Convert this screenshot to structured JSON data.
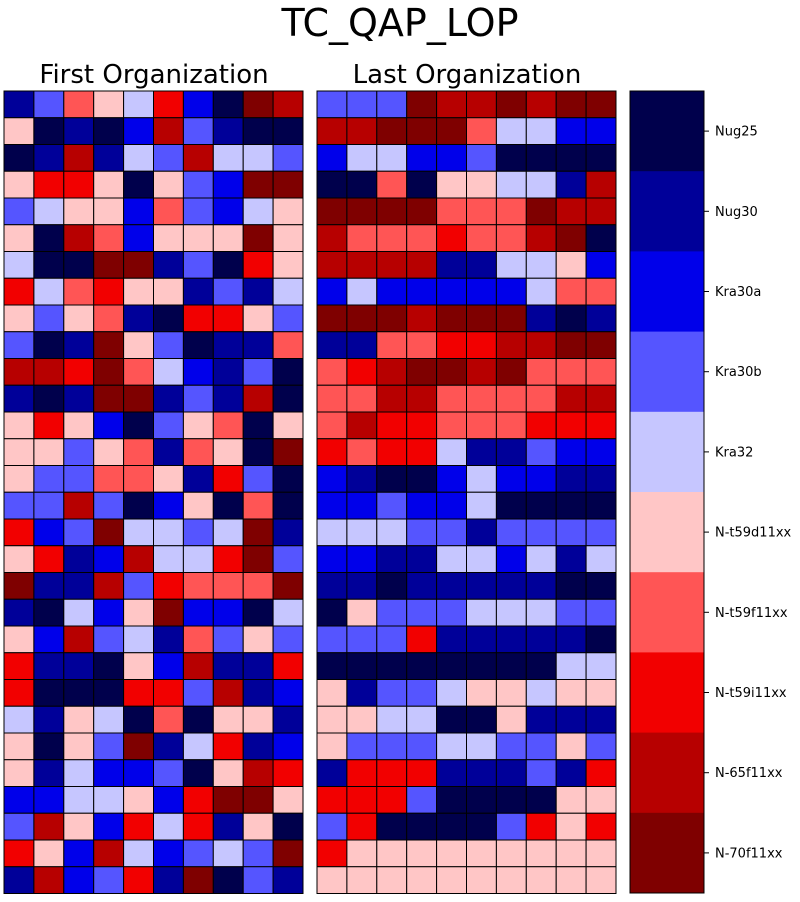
{
  "chart_data": {
    "type": "heatmap",
    "title": "TC_QAP_LOP",
    "palette": {
      "Nug25": "#00004c",
      "Nug30": "#000099",
      "Kra30a": "#0000ea",
      "Kra30b": "#5555ff",
      "Kra32": "#c6c6ff",
      "N-t59d11xx": "#ffc6c6",
      "N-t59f11xx": "#ff5555",
      "N-t59i11xx": "#f20000",
      "N-65f11xx": "#b70000",
      "N-70f11xx": "#7f0000"
    },
    "legend": {
      "labels": [
        "Nug25",
        "Nug30",
        "Kra30a",
        "Kra30b",
        "Kra32",
        "N-t59d11xx",
        "N-t59f11xx",
        "N-t59i11xx",
        "N-65f11xx",
        "N-70f11xx"
      ]
    },
    "panels": [
      {
        "title": "First Organization",
        "rows": [
          [
            "Nug30",
            "Kra30b",
            "N-t59f11xx",
            "N-t59d11xx",
            "Kra32",
            "N-t59i11xx",
            "Kra30a",
            "Nug25",
            "N-70f11xx",
            "N-65f11xx"
          ],
          [
            "N-t59d11xx",
            "Nug25",
            "Nug30",
            "Nug25",
            "Kra30a",
            "N-65f11xx",
            "Kra30b",
            "Nug30",
            "Nug25",
            "Nug25"
          ],
          [
            "Nug25",
            "Nug30",
            "N-65f11xx",
            "Nug30",
            "Kra32",
            "Kra30b",
            "N-65f11xx",
            "Kra32",
            "Kra32",
            "Kra30b"
          ],
          [
            "N-t59d11xx",
            "N-t59i11xx",
            "N-t59i11xx",
            "N-t59d11xx",
            "Nug25",
            "N-t59d11xx",
            "Kra30b",
            "Kra30a",
            "N-70f11xx",
            "N-70f11xx"
          ],
          [
            "Kra30b",
            "Kra32",
            "N-t59d11xx",
            "N-t59d11xx",
            "Kra30a",
            "N-t59f11xx",
            "Kra30b",
            "Kra30a",
            "Kra32",
            "N-t59d11xx"
          ],
          [
            "N-t59d11xx",
            "Nug25",
            "N-65f11xx",
            "N-t59f11xx",
            "Kra30a",
            "N-t59d11xx",
            "N-t59d11xx",
            "N-t59d11xx",
            "N-70f11xx",
            "N-t59d11xx"
          ],
          [
            "Kra32",
            "Nug25",
            "Nug25",
            "N-70f11xx",
            "N-70f11xx",
            "Nug30",
            "Kra30b",
            "Nug25",
            "N-t59i11xx",
            "N-t59d11xx"
          ],
          [
            "N-t59i11xx",
            "Kra32",
            "N-t59f11xx",
            "N-t59i11xx",
            "N-t59d11xx",
            "N-t59d11xx",
            "Nug30",
            "Kra30b",
            "Nug30",
            "Kra32"
          ],
          [
            "N-t59d11xx",
            "Kra30b",
            "N-t59d11xx",
            "N-t59f11xx",
            "Nug30",
            "Nug25",
            "N-t59i11xx",
            "N-t59i11xx",
            "N-t59d11xx",
            "Kra30b"
          ],
          [
            "Kra30b",
            "Nug25",
            "Nug30",
            "N-70f11xx",
            "N-t59d11xx",
            "Kra30b",
            "Nug25",
            "Nug30",
            "Nug30",
            "N-t59f11xx"
          ],
          [
            "N-65f11xx",
            "N-65f11xx",
            "N-t59i11xx",
            "N-70f11xx",
            "N-t59f11xx",
            "Kra32",
            "Kra30a",
            "Nug30",
            "Kra30b",
            "Nug25"
          ],
          [
            "Nug30",
            "Nug25",
            "Nug30",
            "N-70f11xx",
            "N-70f11xx",
            "Nug30",
            "Kra30b",
            "Nug30",
            "N-65f11xx",
            "Nug25"
          ],
          [
            "N-t59d11xx",
            "N-t59i11xx",
            "N-t59d11xx",
            "Kra30a",
            "Nug25",
            "Kra30b",
            "N-t59d11xx",
            "N-t59f11xx",
            "Nug25",
            "N-t59d11xx"
          ],
          [
            "N-t59d11xx",
            "N-t59d11xx",
            "Kra30b",
            "N-t59d11xx",
            "N-t59f11xx",
            "Nug30",
            "N-t59f11xx",
            "N-t59d11xx",
            "Nug25",
            "N-70f11xx"
          ],
          [
            "N-t59d11xx",
            "Kra30b",
            "Kra30b",
            "N-t59f11xx",
            "N-t59f11xx",
            "N-t59d11xx",
            "Nug30",
            "N-t59i11xx",
            "Kra30b",
            "Nug25"
          ],
          [
            "Kra30b",
            "Kra30b",
            "N-65f11xx",
            "Kra30b",
            "Nug25",
            "Kra30a",
            "N-t59d11xx",
            "Nug25",
            "N-t59f11xx",
            "Nug25"
          ],
          [
            "N-t59i11xx",
            "Kra30a",
            "Kra30b",
            "N-70f11xx",
            "Kra32",
            "Kra32",
            "Kra30b",
            "Kra32",
            "N-70f11xx",
            "Nug30"
          ],
          [
            "N-t59d11xx",
            "N-t59i11xx",
            "Nug30",
            "Kra30a",
            "N-65f11xx",
            "Kra32",
            "Kra32",
            "N-t59i11xx",
            "N-70f11xx",
            "Kra30b"
          ],
          [
            "N-70f11xx",
            "Nug30",
            "Nug30",
            "N-65f11xx",
            "Kra30b",
            "N-t59i11xx",
            "N-t59f11xx",
            "N-t59f11xx",
            "N-t59f11xx",
            "N-70f11xx"
          ],
          [
            "Nug30",
            "Nug25",
            "Kra32",
            "Kra30a",
            "N-t59d11xx",
            "N-70f11xx",
            "Kra30a",
            "Kra30a",
            "Nug25",
            "Kra32"
          ],
          [
            "N-t59d11xx",
            "Kra30a",
            "N-65f11xx",
            "Kra30b",
            "Kra32",
            "Nug30",
            "N-t59f11xx",
            "Kra30b",
            "N-t59d11xx",
            "Kra30b"
          ],
          [
            "N-t59i11xx",
            "Nug30",
            "Nug30",
            "Nug25",
            "N-t59d11xx",
            "Kra30a",
            "N-65f11xx",
            "Nug30",
            "Nug30",
            "N-t59i11xx"
          ],
          [
            "N-t59i11xx",
            "Nug25",
            "Nug25",
            "Nug25",
            "N-t59i11xx",
            "N-t59i11xx",
            "Kra30b",
            "N-65f11xx",
            "Nug30",
            "Kra30a"
          ],
          [
            "Kra32",
            "Nug30",
            "N-t59d11xx",
            "Kra32",
            "Nug25",
            "N-t59f11xx",
            "Nug25",
            "N-t59d11xx",
            "N-t59d11xx",
            "Nug30"
          ],
          [
            "N-t59d11xx",
            "Nug25",
            "N-t59d11xx",
            "Kra30b",
            "N-70f11xx",
            "Nug30",
            "Kra32",
            "N-t59i11xx",
            "Nug30",
            "Kra30a"
          ],
          [
            "N-t59d11xx",
            "Nug30",
            "Kra32",
            "Kra30a",
            "Kra30a",
            "Kra30b",
            "Nug25",
            "N-t59d11xx",
            "N-65f11xx",
            "N-t59i11xx"
          ],
          [
            "Kra30a",
            "Kra30a",
            "Kra32",
            "Kra32",
            "N-t59d11xx",
            "Kra30a",
            "N-t59i11xx",
            "N-70f11xx",
            "N-70f11xx",
            "N-t59d11xx"
          ],
          [
            "Kra30b",
            "N-65f11xx",
            "N-t59d11xx",
            "Kra30a",
            "N-t59i11xx",
            "Kra32",
            "N-t59i11xx",
            "Nug30",
            "N-t59d11xx",
            "Nug25"
          ],
          [
            "N-t59i11xx",
            "N-t59d11xx",
            "Kra30a",
            "N-65f11xx",
            "Kra32",
            "Kra30a",
            "Kra30b",
            "Kra32",
            "Kra30b",
            "N-70f11xx"
          ],
          [
            "Nug30",
            "N-65f11xx",
            "Kra30a",
            "Kra30b",
            "N-t59i11xx",
            "Nug30",
            "N-70f11xx",
            "Nug25",
            "Kra30b",
            "Nug30"
          ]
        ]
      },
      {
        "title": "Last Organization",
        "rows": [
          [
            "Kra30b",
            "Kra30b",
            "Kra30b",
            "N-70f11xx",
            "N-65f11xx",
            "N-65f11xx",
            "N-70f11xx",
            "N-65f11xx",
            "N-70f11xx",
            "N-70f11xx"
          ],
          [
            "N-65f11xx",
            "N-65f11xx",
            "N-70f11xx",
            "N-70f11xx",
            "N-70f11xx",
            "N-t59f11xx",
            "Kra32",
            "Kra32",
            "Kra30a",
            "Kra30a"
          ],
          [
            "Kra30a",
            "Kra32",
            "Kra32",
            "Kra30a",
            "Kra30a",
            "Kra30b",
            "Nug25",
            "Nug25",
            "Nug25",
            "Nug25"
          ],
          [
            "Nug25",
            "Nug25",
            "N-t59f11xx",
            "Nug25",
            "N-t59d11xx",
            "N-t59d11xx",
            "Kra32",
            "Kra32",
            "Nug30",
            "N-65f11xx"
          ],
          [
            "N-70f11xx",
            "N-70f11xx",
            "N-70f11xx",
            "N-70f11xx",
            "N-t59f11xx",
            "N-t59f11xx",
            "N-t59f11xx",
            "N-70f11xx",
            "N-65f11xx",
            "N-65f11xx"
          ],
          [
            "N-65f11xx",
            "N-t59f11xx",
            "N-t59f11xx",
            "N-t59f11xx",
            "N-t59i11xx",
            "N-t59f11xx",
            "N-t59f11xx",
            "N-65f11xx",
            "N-70f11xx",
            "Nug25"
          ],
          [
            "N-65f11xx",
            "N-65f11xx",
            "N-65f11xx",
            "N-65f11xx",
            "Nug30",
            "Nug30",
            "Kra32",
            "Kra32",
            "N-t59d11xx",
            "Kra30a"
          ],
          [
            "Kra30a",
            "Kra32",
            "Kra30a",
            "Kra30a",
            "Kra30a",
            "Kra30a",
            "Kra30a",
            "Kra32",
            "N-t59f11xx",
            "N-t59f11xx"
          ],
          [
            "N-70f11xx",
            "N-70f11xx",
            "N-70f11xx",
            "N-65f11xx",
            "N-70f11xx",
            "N-70f11xx",
            "N-70f11xx",
            "Nug30",
            "Nug25",
            "Nug30"
          ],
          [
            "Nug30",
            "Nug30",
            "N-t59f11xx",
            "N-t59f11xx",
            "N-t59i11xx",
            "N-t59i11xx",
            "N-65f11xx",
            "N-65f11xx",
            "N-70f11xx",
            "N-70f11xx"
          ],
          [
            "N-t59f11xx",
            "N-t59i11xx",
            "N-65f11xx",
            "N-70f11xx",
            "N-70f11xx",
            "N-65f11xx",
            "N-70f11xx",
            "N-t59f11xx",
            "N-t59f11xx",
            "N-t59f11xx"
          ],
          [
            "N-t59f11xx",
            "N-t59f11xx",
            "N-65f11xx",
            "N-65f11xx",
            "N-t59f11xx",
            "N-t59f11xx",
            "N-t59f11xx",
            "N-t59f11xx",
            "N-65f11xx",
            "N-65f11xx"
          ],
          [
            "N-t59f11xx",
            "N-65f11xx",
            "N-t59i11xx",
            "N-t59i11xx",
            "N-t59f11xx",
            "N-t59f11xx",
            "N-t59f11xx",
            "N-t59i11xx",
            "N-t59i11xx",
            "N-t59i11xx"
          ],
          [
            "N-t59i11xx",
            "N-t59f11xx",
            "N-t59i11xx",
            "N-t59i11xx",
            "Kra32",
            "Nug30",
            "Nug30",
            "Kra30b",
            "Kra30a",
            "Kra30a"
          ],
          [
            "Kra30a",
            "Nug30",
            "Nug25",
            "Nug25",
            "Kra30a",
            "Kra32",
            "Kra30a",
            "Kra30a",
            "Nug30",
            "Nug30"
          ],
          [
            "Kra30a",
            "Kra30a",
            "Kra30b",
            "Kra30a",
            "Kra30a",
            "Kra32",
            "Nug25",
            "Nug25",
            "Nug25",
            "Nug25"
          ],
          [
            "Kra32",
            "Kra32",
            "Kra32",
            "Kra30b",
            "Kra30b",
            "Nug30",
            "Kra30b",
            "Kra30b",
            "Kra30b",
            "Kra30b"
          ],
          [
            "Kra30a",
            "Kra30a",
            "Nug30",
            "Nug30",
            "Kra32",
            "Kra32",
            "Kra30a",
            "Kra32",
            "Nug30",
            "Kra32"
          ],
          [
            "Nug30",
            "Nug30",
            "Nug25",
            "Nug30",
            "Nug30",
            "Nug30",
            "Nug30",
            "Nug30",
            "Nug25",
            "Nug25"
          ],
          [
            "Nug25",
            "N-t59d11xx",
            "Kra30b",
            "Kra30b",
            "Kra30b",
            "Kra32",
            "Kra32",
            "Kra32",
            "Kra30b",
            "Kra30b"
          ],
          [
            "Kra30b",
            "Kra30b",
            "Kra30b",
            "N-t59i11xx",
            "Nug30",
            "Nug30",
            "Nug30",
            "Nug30",
            "Nug30",
            "Nug25"
          ],
          [
            "Nug25",
            "Nug25",
            "Nug25",
            "Nug25",
            "Nug25",
            "Nug25",
            "Nug25",
            "Nug25",
            "Kra32",
            "Kra32"
          ],
          [
            "N-t59d11xx",
            "Nug30",
            "Kra30b",
            "Kra30b",
            "Kra32",
            "N-t59d11xx",
            "N-t59d11xx",
            "Kra32",
            "N-t59d11xx",
            "N-t59d11xx"
          ],
          [
            "N-t59d11xx",
            "N-t59d11xx",
            "Kra32",
            "Kra32",
            "Nug25",
            "Nug25",
            "N-t59d11xx",
            "Nug30",
            "Nug30",
            "Nug30"
          ],
          [
            "N-t59d11xx",
            "Kra30b",
            "Kra30b",
            "Kra30b",
            "Kra32",
            "Kra32",
            "Kra30b",
            "Kra30b",
            "N-t59d11xx",
            "Kra30b"
          ],
          [
            "Nug30",
            "N-t59i11xx",
            "N-t59i11xx",
            "N-t59i11xx",
            "Nug30",
            "Nug30",
            "Nug30",
            "Kra30b",
            "Nug30",
            "N-t59i11xx"
          ],
          [
            "N-t59i11xx",
            "N-t59i11xx",
            "N-t59i11xx",
            "Kra30b",
            "Nug25",
            "Nug25",
            "Nug25",
            "Nug25",
            "N-t59d11xx",
            "N-t59d11xx"
          ],
          [
            "Kra30b",
            "N-t59i11xx",
            "Nug25",
            "Nug25",
            "Nug25",
            "Nug25",
            "Kra30b",
            "N-t59i11xx",
            "N-t59d11xx",
            "N-t59i11xx"
          ],
          [
            "N-t59i11xx",
            "N-t59d11xx",
            "N-t59d11xx",
            "N-t59d11xx",
            "N-t59d11xx",
            "N-t59d11xx",
            "N-t59d11xx",
            "N-t59d11xx",
            "N-t59d11xx",
            "N-t59d11xx"
          ],
          [
            "N-t59d11xx",
            "N-t59d11xx",
            "N-t59d11xx",
            "N-t59d11xx",
            "N-t59d11xx",
            "N-t59d11xx",
            "N-t59d11xx",
            "N-t59d11xx",
            "N-t59d11xx",
            "N-t59d11xx"
          ]
        ]
      }
    ]
  }
}
